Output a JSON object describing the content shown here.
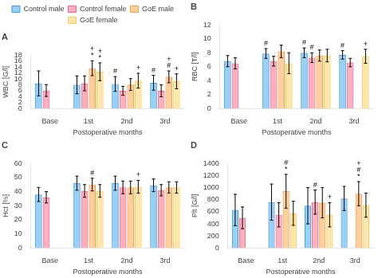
{
  "chart_data": [
    {
      "type": "bar",
      "title": "A",
      "xlabel": "Postoperative months",
      "ylabel": "WBC [G/l]",
      "categories": [
        "Base",
        "1st",
        "2nd",
        "3rd"
      ],
      "series": [
        {
          "name": "Control male",
          "values": [
            8.5,
            8.0,
            8.3,
            8.7
          ],
          "errors": [
            4.2,
            3.0,
            2.5,
            2.5
          ]
        },
        {
          "name": "Control female",
          "values": [
            6.1,
            8.5,
            6.0,
            6.0
          ],
          "errors": [
            2.0,
            2.5,
            1.5,
            2.0
          ]
        },
        {
          "name": "GoE male",
          "values": [
            null,
            13.6,
            8.1,
            10.7
          ],
          "errors": [
            null,
            2.5,
            2.0,
            2.0
          ]
        },
        {
          "name": "GoE female",
          "values": [
            null,
            12.4,
            9.4,
            9.2
          ],
          "errors": [
            null,
            3.0,
            2.5,
            2.5
          ]
        }
      ],
      "annotations": [
        {
          "category": "1st",
          "series": "GoE male",
          "text": "*"
        },
        {
          "category": "1st",
          "series": "GoE male",
          "text": "+"
        },
        {
          "category": "1st",
          "series": "GoE female",
          "text": "*"
        },
        {
          "category": "1st",
          "series": "GoE female",
          "text": "+"
        },
        {
          "category": "2nd",
          "series": "Control male",
          "text": "#"
        },
        {
          "category": "2nd",
          "series": "GoE female",
          "text": "+"
        },
        {
          "category": "3rd",
          "series": "Control male",
          "text": "#"
        },
        {
          "category": "3rd",
          "series": "GoE male",
          "text": "#"
        },
        {
          "category": "3rd",
          "series": "GoE male",
          "text": "+"
        },
        {
          "category": "3rd",
          "series": "GoE female",
          "text": "+"
        }
      ],
      "ylim": [
        0,
        18
      ],
      "yticks": [
        0,
        2,
        4,
        6,
        8,
        10,
        12,
        14,
        16,
        18
      ],
      "grid": false,
      "legend": "top"
    },
    {
      "type": "bar",
      "title": "B",
      "xlabel": "Postoperative months",
      "ylabel": "RBC [T/l]",
      "categories": [
        "Base",
        "1st",
        "2nd",
        "3rd"
      ],
      "series": [
        {
          "name": "Control male",
          "values": [
            6.8,
            7.9,
            8.0,
            7.7
          ],
          "errors": [
            0.8,
            0.7,
            0.7,
            0.6
          ]
        },
        {
          "name": "Control female",
          "values": [
            6.5,
            6.8,
            7.3,
            6.6
          ],
          "errors": [
            0.8,
            0.7,
            0.7,
            0.6
          ]
        },
        {
          "name": "GoE male",
          "values": [
            null,
            8.2,
            7.6,
            null
          ],
          "errors": [
            null,
            0.9,
            0.8,
            null
          ]
        },
        {
          "name": "GoE female",
          "values": [
            null,
            6.5,
            7.6,
            7.5
          ],
          "errors": [
            null,
            1.5,
            0.9,
            1.0
          ]
        }
      ],
      "annotations": [
        {
          "category": "1st",
          "series": "Control male",
          "text": "#"
        },
        {
          "category": "2nd",
          "series": "Control male",
          "text": "#"
        },
        {
          "category": "2nd",
          "series": "Control female",
          "text": "#"
        },
        {
          "category": "3rd",
          "series": "Control male",
          "text": "#"
        },
        {
          "category": "3rd",
          "series": "GoE female",
          "text": "+"
        }
      ],
      "ylim": [
        0,
        12
      ],
      "yticks": [
        0,
        2,
        4,
        6,
        8,
        10,
        12
      ],
      "grid": false
    },
    {
      "type": "bar",
      "title": "C",
      "xlabel": "Postoperative months",
      "ylabel": "Hct [%]",
      "categories": [
        "Base",
        "1st",
        "2nd",
        "3rd"
      ],
      "series": [
        {
          "name": "Control male",
          "values": [
            38.0,
            46.0,
            46.0,
            44.5
          ],
          "errors": [
            5.0,
            5.0,
            5.0,
            4.5
          ]
        },
        {
          "name": "Control female",
          "values": [
            36.0,
            40.5,
            43.0,
            41.0
          ],
          "errors": [
            4.0,
            4.5,
            4.5,
            4.0
          ]
        },
        {
          "name": "GoE male",
          "values": [
            null,
            45.0,
            43.0,
            43.0
          ],
          "errors": [
            null,
            4.5,
            4.5,
            4.0
          ]
        },
        {
          "name": "GoE female",
          "values": [
            null,
            40.5,
            43.5,
            43.0
          ],
          "errors": [
            null,
            4.5,
            4.5,
            4.0
          ]
        }
      ],
      "annotations": [
        {
          "category": "1st",
          "series": "GoE male",
          "text": "#"
        },
        {
          "category": "2nd",
          "series": "GoE female",
          "text": "+"
        }
      ],
      "ylim": [
        0,
        60
      ],
      "yticks": [
        0,
        10,
        20,
        30,
        40,
        50,
        60
      ],
      "grid": false
    },
    {
      "type": "bar",
      "title": "D",
      "xlabel": "Postoperative months",
      "ylabel": "Plt [G/l]",
      "categories": [
        "Base",
        "1st",
        "2nd",
        "3rd"
      ],
      "series": [
        {
          "name": "Control male",
          "values": [
            630,
            760,
            700,
            820
          ],
          "errors": [
            260,
            300,
            300,
            200
          ]
        },
        {
          "name": "Control female",
          "values": [
            500,
            550,
            760,
            null
          ],
          "errors": [
            180,
            200,
            200,
            null
          ]
        },
        {
          "name": "GoE male",
          "values": [
            null,
            940,
            750,
            900
          ],
          "errors": [
            null,
            280,
            250,
            200
          ]
        },
        {
          "name": "GoE female",
          "values": [
            null,
            575,
            550,
            710
          ],
          "errors": [
            null,
            200,
            200,
            200
          ]
        }
      ],
      "annotations": [
        {
          "category": "1st",
          "series": "GoE male",
          "text": "*"
        },
        {
          "category": "1st",
          "series": "GoE male",
          "text": "#"
        },
        {
          "category": "2nd",
          "series": "Control female",
          "text": "#"
        },
        {
          "category": "2nd",
          "series": "GoE female",
          "text": "+"
        },
        {
          "category": "3rd",
          "series": "GoE male",
          "text": "*"
        },
        {
          "category": "3rd",
          "series": "GoE male",
          "text": "#"
        },
        {
          "category": "3rd",
          "series": "GoE male",
          "text": "+"
        }
      ],
      "ylim": [
        0,
        1400
      ],
      "yticks": [
        0,
        200,
        400,
        600,
        800,
        1000,
        1200,
        1400
      ],
      "grid": false
    }
  ]
}
